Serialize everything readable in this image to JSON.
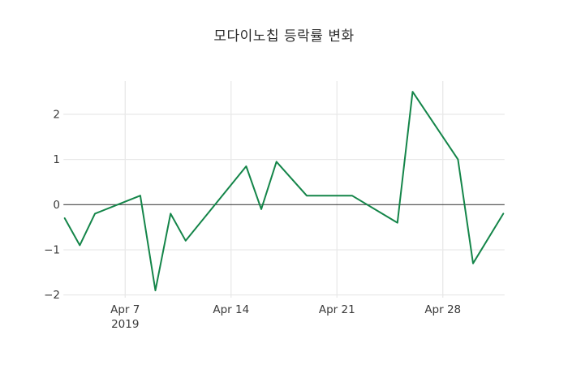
{
  "chart_data": {
    "type": "line",
    "title": "모다이노칩 등락률 변화",
    "xlabel": "",
    "ylabel": "",
    "legend_position": "none",
    "grid": true,
    "x_axis": {
      "range_dates": [
        "2019-04-03",
        "2019-05-02"
      ],
      "ticks": [
        {
          "date": "2019-04-07",
          "label": "Apr 7",
          "sublabel": "2019"
        },
        {
          "date": "2019-04-14",
          "label": "Apr 14",
          "sublabel": ""
        },
        {
          "date": "2019-04-21",
          "label": "Apr 21",
          "sublabel": ""
        },
        {
          "date": "2019-04-28",
          "label": "Apr 28",
          "sublabel": ""
        }
      ]
    },
    "y_axis": {
      "tick_values": [
        -2,
        -1,
        0,
        1,
        2
      ],
      "tick_labels": [
        "−2",
        "−1",
        "0",
        "1",
        "2"
      ],
      "range": [
        -2.0,
        2.74
      ],
      "zeroline": true
    },
    "series": [
      {
        "name": "모다이노칩 등락률",
        "color": "#148549",
        "width": 2,
        "points": [
          {
            "date": "2019-04-03",
            "value": -0.3
          },
          {
            "date": "2019-04-04",
            "value": -0.9
          },
          {
            "date": "2019-04-05",
            "value": -0.2
          },
          {
            "date": "2019-04-08",
            "value": 0.2
          },
          {
            "date": "2019-04-09",
            "value": -1.9
          },
          {
            "date": "2019-04-10",
            "value": -0.2
          },
          {
            "date": "2019-04-11",
            "value": -0.8
          },
          {
            "date": "2019-04-15",
            "value": 0.85
          },
          {
            "date": "2019-04-16",
            "value": -0.1
          },
          {
            "date": "2019-04-17",
            "value": 0.95
          },
          {
            "date": "2019-04-19",
            "value": 0.2
          },
          {
            "date": "2019-04-22",
            "value": 0.2
          },
          {
            "date": "2019-04-25",
            "value": -0.4
          },
          {
            "date": "2019-04-26",
            "value": 2.5
          },
          {
            "date": "2019-04-29",
            "value": 1.0
          },
          {
            "date": "2019-04-30",
            "value": -1.3
          },
          {
            "date": "2019-05-02",
            "value": -0.2
          }
        ]
      }
    ],
    "colors": {
      "line": "#148549",
      "grid": "#e9e9e9",
      "zero_line": "#444444",
      "tick_text": "#3a3a3a",
      "title_text": "#2b2b2b",
      "background": "#ffffff"
    }
  }
}
